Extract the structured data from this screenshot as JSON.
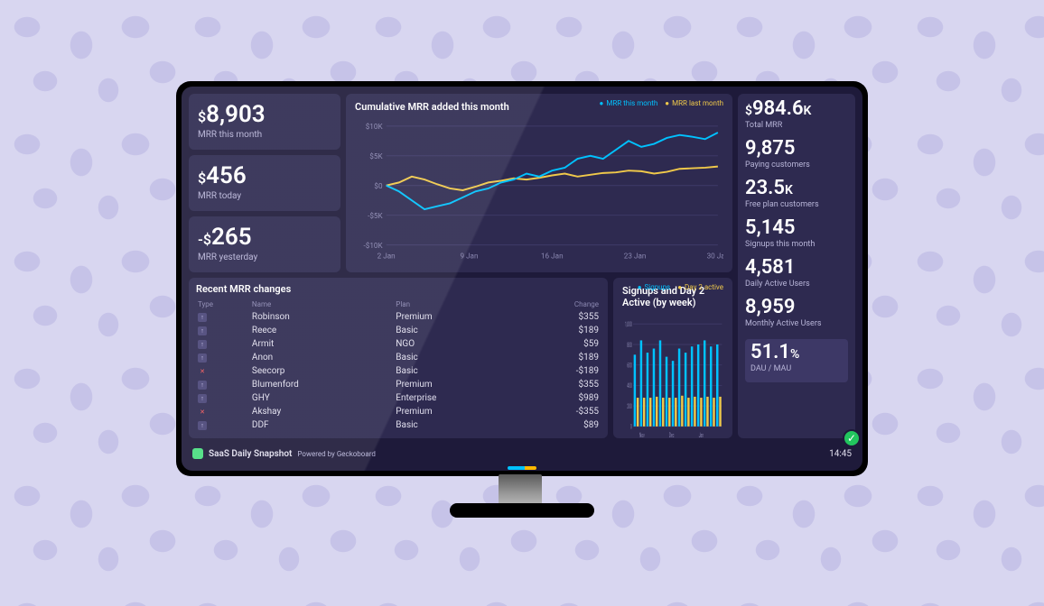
{
  "left_metrics": [
    {
      "prefix": "$",
      "value": "8,903",
      "label": "MRR this month"
    },
    {
      "prefix": "$",
      "value": "456",
      "label": "MRR today"
    },
    {
      "prefix": "-$",
      "value": "265",
      "label": "MRR yesterday"
    }
  ],
  "right_metrics": [
    {
      "prefix": "$",
      "value": "984.6",
      "suffix": "K",
      "label": "Total MRR"
    },
    {
      "prefix": "",
      "value": "9,875",
      "suffix": "",
      "label": "Paying customers"
    },
    {
      "prefix": "",
      "value": "23.5",
      "suffix": "K",
      "label": "Free plan customers"
    },
    {
      "prefix": "",
      "value": "5,145",
      "suffix": "",
      "label": "Signups this month"
    },
    {
      "prefix": "",
      "value": "4,581",
      "suffix": "",
      "label": "Daily Active Users"
    },
    {
      "prefix": "",
      "value": "8,959",
      "suffix": "",
      "label": "Monthly Active Users"
    }
  ],
  "dau_mau": {
    "value": "51.1",
    "suffix": "%",
    "label": "DAU / MAU"
  },
  "mrr_chart": {
    "title": "Cumulative MRR added this month",
    "legend": [
      "MRR this month",
      "MRR last month"
    ],
    "legend_colors": [
      "#00c2ff",
      "#f0c94a"
    ],
    "y_ticks": [
      "$10K",
      "$5K",
      "$0",
      "-$5K",
      "-$10K"
    ],
    "y_values": [
      10000,
      5000,
      0,
      -5000,
      -10000
    ],
    "x_labels": [
      "2 Jan",
      "9 Jan",
      "16 Jan",
      "23 Jan",
      "30 Jan"
    ],
    "this_month": [
      0,
      -1000,
      -2500,
      -4000,
      -3500,
      -3000,
      -2000,
      -1000,
      -500,
      500,
      1000,
      2000,
      1500,
      2500,
      3000,
      4500,
      5000,
      4500,
      6000,
      7500,
      6500,
      7000,
      8000,
      8500,
      8200,
      7800,
      8903
    ],
    "last_month": [
      0,
      500,
      1500,
      1000,
      200,
      -500,
      -800,
      -200,
      500,
      800,
      1200,
      1000,
      1300,
      1700,
      2000,
      1500,
      1800,
      2100,
      2200,
      2500,
      2400,
      2000,
      2300,
      2800,
      2900,
      3000,
      3200
    ],
    "line_width": 1.8,
    "grid_color": "#3d3866",
    "background": "#2e2a50"
  },
  "mrr_table": {
    "title": "Recent MRR changes",
    "columns": [
      "Type",
      "Name",
      "Plan",
      "Change"
    ],
    "rows": [
      {
        "type": "up",
        "name": "Robinson",
        "plan": "Premium",
        "change": "$355"
      },
      {
        "type": "up",
        "name": "Reece",
        "plan": "Basic",
        "change": "$189"
      },
      {
        "type": "up",
        "name": "Armit",
        "plan": "NGO",
        "change": "$59"
      },
      {
        "type": "up",
        "name": "Anon",
        "plan": "Basic",
        "change": "$189"
      },
      {
        "type": "cancel",
        "name": "Seecorp",
        "plan": "Basic",
        "change": "-$189"
      },
      {
        "type": "up",
        "name": "Blumenford",
        "plan": "Premium",
        "change": "$355"
      },
      {
        "type": "up",
        "name": "GHY",
        "plan": "Enterprise",
        "change": "$989"
      },
      {
        "type": "cancel",
        "name": "Akshay",
        "plan": "Premium",
        "change": "-$355"
      },
      {
        "type": "up",
        "name": "DDF",
        "plan": "Basic",
        "change": "$89"
      }
    ]
  },
  "signups_chart": {
    "title": "Signups and Day 2 Active (by week)",
    "legend": [
      "Signups",
      "Day 2 active"
    ],
    "legend_colors": [
      "#00c2ff",
      "#f0c94a"
    ],
    "y_ticks": [
      "1,000",
      "800",
      "600",
      "400",
      "200",
      "0"
    ],
    "y_max": 1000,
    "x_labels": [
      "Nov",
      "Dec",
      "Jan"
    ],
    "signups": [
      700,
      840,
      720,
      760,
      840,
      680,
      640,
      760,
      720,
      780,
      800,
      840,
      780,
      800
    ],
    "day2": [
      280,
      280,
      280,
      290,
      280,
      280,
      280,
      300,
      280,
      290,
      280,
      290,
      280,
      290
    ],
    "bar_width": 0.35,
    "background": "#2e2a50"
  },
  "footer": {
    "title": "SaaS Daily Snapshot",
    "powered": "Powered by Geckoboard",
    "time": "14:45"
  }
}
